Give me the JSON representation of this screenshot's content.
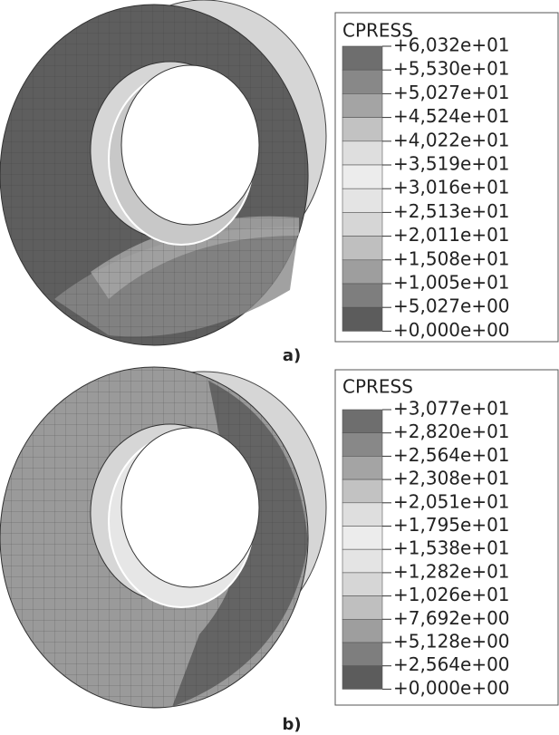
{
  "panels": [
    {
      "legend": {
        "title": "CPRESS",
        "labels": [
          "+6,032e+01",
          "+5,530e+01",
          "+5,027e+01",
          "+4,524e+01",
          "+4,022e+01",
          "+3,519e+01",
          "+3,016e+01",
          "+2,513e+01",
          "+2,011e+01",
          "+1,508e+01",
          "+1,005e+01",
          "+5,027e+00",
          "+0,000e+00"
        ]
      },
      "caption": "a)"
    },
    {
      "legend": {
        "title": "CPRESS",
        "labels": [
          "+3,077e+01",
          "+2,820e+01",
          "+2,564e+01",
          "+2,308e+01",
          "+2,051e+01",
          "+1,795e+01",
          "+1,538e+01",
          "+1,282e+01",
          "+1,026e+01",
          "+7,692e+00",
          "+5,128e+00",
          "+2,564e+00",
          "+0,000e+00"
        ]
      },
      "caption": "b)"
    }
  ]
}
